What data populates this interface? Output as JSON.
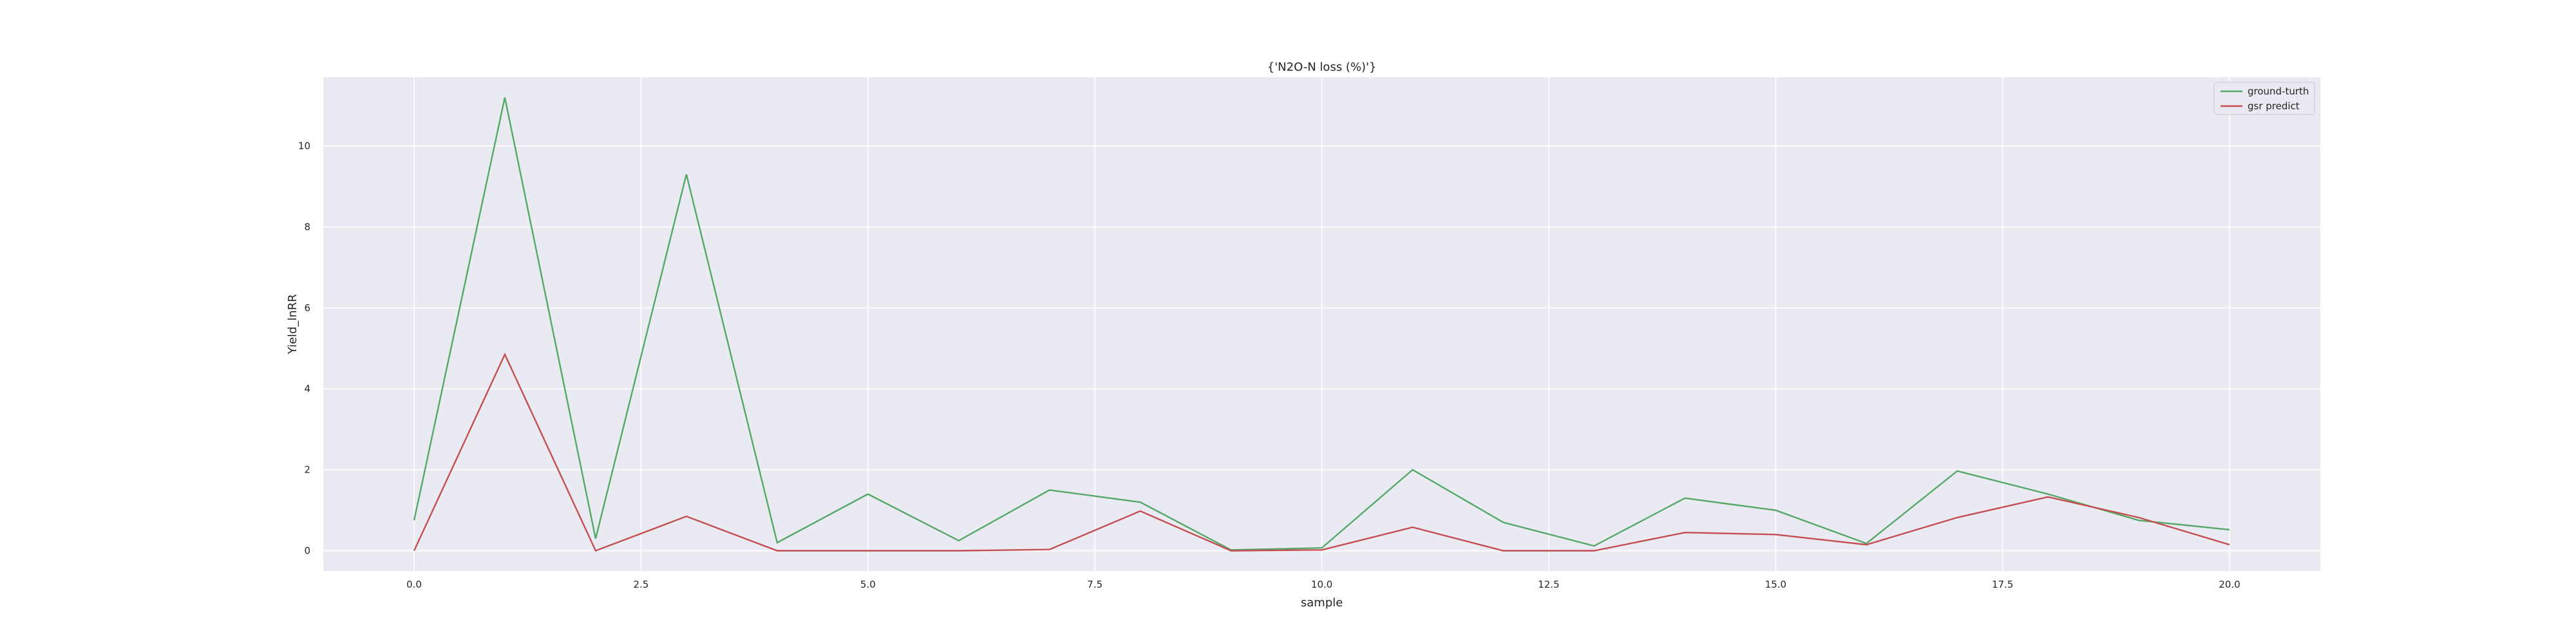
{
  "chart_data": {
    "type": "line",
    "title": "{'N2O-N loss (%)'}",
    "xlabel": "sample",
    "ylabel": "Yield_lnRR",
    "x": [
      0,
      1,
      2,
      3,
      4,
      5,
      6,
      7,
      8,
      9,
      10,
      11,
      12,
      13,
      14,
      15,
      16,
      17,
      18,
      19,
      20
    ],
    "xlim": [
      -1,
      21
    ],
    "ylim": [
      -0.5,
      11.7
    ],
    "xticks": [
      0.0,
      2.5,
      5.0,
      7.5,
      10.0,
      12.5,
      15.0,
      17.5,
      20.0
    ],
    "xtick_labels": [
      "0.0",
      "2.5",
      "5.0",
      "7.5",
      "10.0",
      "12.5",
      "15.0",
      "17.5",
      "20.0"
    ],
    "yticks": [
      0,
      2,
      4,
      6,
      8,
      10
    ],
    "ytick_labels": [
      "0",
      "2",
      "4",
      "6",
      "8",
      "10"
    ],
    "grid": true,
    "legend_position": "top-right",
    "series": [
      {
        "name": "ground-turth",
        "color": "#55a868",
        "values": [
          0.75,
          11.2,
          0.3,
          9.3,
          0.2,
          1.4,
          0.25,
          1.5,
          1.2,
          0.02,
          0.07,
          2.0,
          0.7,
          0.12,
          1.3,
          1.0,
          0.18,
          1.97,
          1.4,
          0.75,
          0.52
        ]
      },
      {
        "name": "gsr predict",
        "color": "#c44e52",
        "values": [
          0.0,
          4.85,
          0.0,
          0.85,
          0.0,
          0.0,
          0.0,
          0.03,
          0.98,
          0.0,
          0.02,
          0.58,
          0.0,
          0.0,
          0.45,
          0.4,
          0.15,
          0.82,
          1.33,
          0.82,
          0.15
        ]
      }
    ],
    "colors": {
      "plot_background": "#eaeaf2",
      "grid": "#ffffff",
      "text": "#262626"
    }
  }
}
